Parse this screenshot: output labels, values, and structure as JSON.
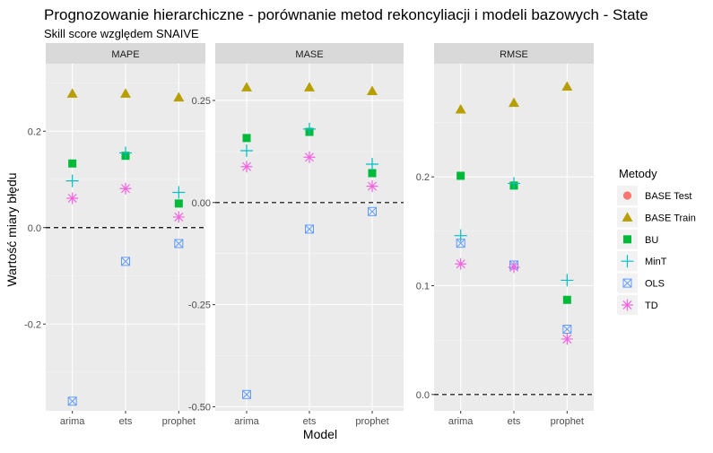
{
  "chart_data": {
    "type": "scatter",
    "title": "Prognozowanie hierarchiczne - porównanie metod rekoncyliacji i modeli bazowych - State",
    "subtitle": "Skill score względem SNAIVE",
    "xlabel": "Model",
    "ylabel": "Wartość miary błędu",
    "categories": [
      "arima",
      "ets",
      "prophet"
    ],
    "legend": {
      "title": "Metody",
      "position": "right",
      "entries": [
        {
          "name": "BASE Test",
          "shape": "circle",
          "color": "#F8766D"
        },
        {
          "name": "BASE Train",
          "shape": "triangle",
          "color": "#B79F00"
        },
        {
          "name": "BU",
          "shape": "square",
          "color": "#00BA38"
        },
        {
          "name": "MinT",
          "shape": "plus",
          "color": "#00BFC4"
        },
        {
          "name": "OLS",
          "shape": "square-x",
          "color": "#619CFF"
        },
        {
          "name": "TD",
          "shape": "asterisk",
          "color": "#F564E3"
        }
      ]
    },
    "reference_line": 0,
    "grid": true,
    "panels": [
      {
        "facet": "MAPE",
        "ylim": [
          -0.38,
          0.34
        ],
        "yticks": [
          0.2,
          0.0,
          -0.2
        ],
        "ytick_labels": [
          "0.2",
          "0.0",
          "-0.2"
        ],
        "series": [
          {
            "name": "BASE Train",
            "values": [
              0.278,
              0.278,
              0.27
            ]
          },
          {
            "name": "BU",
            "values": [
              0.133,
              0.149,
              0.05
            ]
          },
          {
            "name": "MinT",
            "values": [
              0.097,
              0.155,
              0.073
            ]
          },
          {
            "name": "OLS",
            "values": [
              -0.36,
              -0.07,
              -0.033
            ]
          },
          {
            "name": "TD",
            "values": [
              0.061,
              0.081,
              0.022
            ]
          }
        ]
      },
      {
        "facet": "MASE",
        "ylim": [
          -0.51,
          0.34
        ],
        "yticks": [
          0.25,
          0.0,
          -0.25,
          -0.5
        ],
        "ytick_labels": [
          "0.25",
          "0.00",
          "-0.25",
          "-0.50"
        ],
        "series": [
          {
            "name": "BASE Train",
            "values": [
              0.282,
              0.282,
              0.273
            ]
          },
          {
            "name": "BU",
            "values": [
              0.158,
              0.173,
              0.072
            ]
          },
          {
            "name": "MinT",
            "values": [
              0.127,
              0.18,
              0.094
            ]
          },
          {
            "name": "OLS",
            "values": [
              -0.47,
              -0.065,
              -0.022
            ]
          },
          {
            "name": "TD",
            "values": [
              0.088,
              0.111,
              0.04
            ]
          }
        ]
      },
      {
        "facet": "RMSE",
        "ylim": [
          -0.015,
          0.304
        ],
        "yticks": [
          0.2,
          0.1,
          0.0
        ],
        "ytick_labels": [
          "0.2",
          "0.1",
          "0.0"
        ],
        "series": [
          {
            "name": "BASE Train",
            "values": [
              0.262,
              0.268,
              0.283
            ]
          },
          {
            "name": "BU",
            "values": [
              0.201,
              0.192,
              0.087
            ]
          },
          {
            "name": "MinT",
            "values": [
              0.146,
              0.194,
              0.105
            ]
          },
          {
            "name": "OLS",
            "values": [
              0.139,
              0.119,
              0.06
            ]
          },
          {
            "name": "TD",
            "values": [
              0.12,
              0.117,
              0.051
            ]
          }
        ]
      }
    ]
  }
}
